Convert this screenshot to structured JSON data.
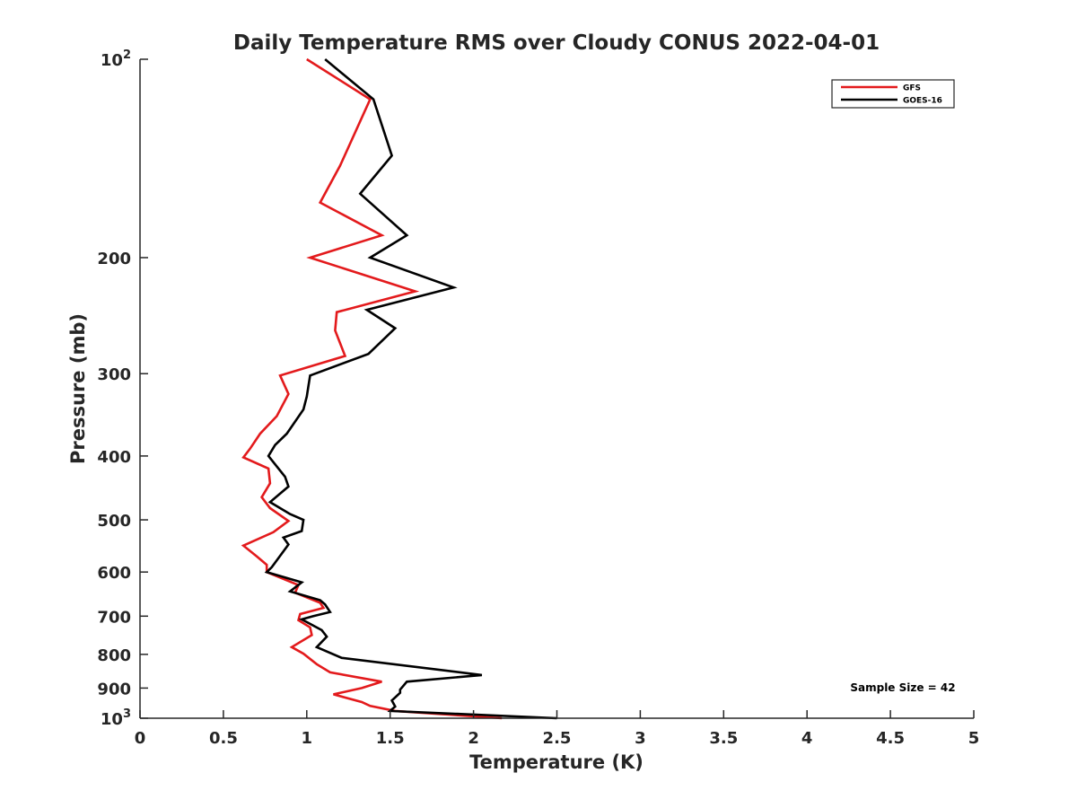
{
  "chart_data": {
    "type": "line",
    "title": "Daily Temperature RMS over Cloudy CONUS 2022-04-01",
    "xlabel": "Temperature (K)",
    "ylabel": "Pressure (mb)",
    "xlim": [
      0,
      5
    ],
    "ylim": [
      100,
      1000
    ],
    "y_scale": "log",
    "y_reversed": true,
    "grid": false,
    "legend_position": "top-right",
    "x_ticks": [
      "0",
      "0.5",
      "1",
      "1.5",
      "2",
      "2.5",
      "3",
      "3.5",
      "4",
      "4.5",
      "5"
    ],
    "y_ticks": [
      {
        "value": 100,
        "base": "10",
        "exp": "2"
      },
      {
        "value": 200,
        "label": "200"
      },
      {
        "value": 300,
        "label": "300"
      },
      {
        "value": 400,
        "label": "400"
      },
      {
        "value": 500,
        "label": "500"
      },
      {
        "value": 600,
        "label": "600"
      },
      {
        "value": 700,
        "label": "700"
      },
      {
        "value": 800,
        "label": "800"
      },
      {
        "value": 900,
        "label": "900"
      },
      {
        "value": 1000,
        "base": "10",
        "exp": "3"
      }
    ],
    "annotation": "Sample Size = 42",
    "series": [
      {
        "name": "GFS",
        "color": "#e31a1c",
        "points": [
          [
            1.0,
            100
          ],
          [
            1.38,
            115
          ],
          [
            1.2,
            145
          ],
          [
            1.08,
            165
          ],
          [
            1.45,
            185
          ],
          [
            1.02,
            200
          ],
          [
            1.65,
            225
          ],
          [
            1.18,
            242
          ],
          [
            1.17,
            258
          ],
          [
            1.23,
            282
          ],
          [
            0.84,
            302
          ],
          [
            0.89,
            322
          ],
          [
            0.82,
            348
          ],
          [
            0.72,
            370
          ],
          [
            0.66,
            390
          ],
          [
            0.62,
            402
          ],
          [
            0.77,
            418
          ],
          [
            0.78,
            440
          ],
          [
            0.73,
            462
          ],
          [
            0.78,
            480
          ],
          [
            0.89,
            502
          ],
          [
            0.8,
            522
          ],
          [
            0.62,
            547
          ],
          [
            0.7,
            568
          ],
          [
            0.76,
            585
          ],
          [
            0.76,
            600
          ],
          [
            0.95,
            628
          ],
          [
            0.93,
            645
          ],
          [
            1.08,
            668
          ],
          [
            1.1,
            680
          ],
          [
            0.96,
            695
          ],
          [
            0.95,
            710
          ],
          [
            1.02,
            728
          ],
          [
            1.03,
            748
          ],
          [
            0.91,
            780
          ],
          [
            0.98,
            798
          ],
          [
            1.06,
            828
          ],
          [
            1.14,
            852
          ],
          [
            1.45,
            880
          ],
          [
            1.33,
            900
          ],
          [
            1.16,
            920
          ],
          [
            1.33,
            945
          ],
          [
            1.38,
            958
          ],
          [
            1.53,
            975
          ],
          [
            2.17,
            1000
          ]
        ]
      },
      {
        "name": "GOES-16",
        "color": "#000000",
        "points": [
          [
            1.11,
            100
          ],
          [
            1.4,
            115
          ],
          [
            1.51,
            140
          ],
          [
            1.32,
            160
          ],
          [
            1.6,
            185
          ],
          [
            1.38,
            200
          ],
          [
            1.88,
            222
          ],
          [
            1.36,
            240
          ],
          [
            1.53,
            256
          ],
          [
            1.37,
            280
          ],
          [
            1.02,
            302
          ],
          [
            1.0,
            325
          ],
          [
            0.98,
            340
          ],
          [
            0.88,
            370
          ],
          [
            0.81,
            385
          ],
          [
            0.77,
            400
          ],
          [
            0.87,
            430
          ],
          [
            0.89,
            445
          ],
          [
            0.78,
            470
          ],
          [
            0.9,
            490
          ],
          [
            0.98,
            500
          ],
          [
            0.97,
            520
          ],
          [
            0.86,
            532
          ],
          [
            0.89,
            545
          ],
          [
            0.79,
            590
          ],
          [
            0.76,
            600
          ],
          [
            0.97,
            622
          ],
          [
            0.9,
            642
          ],
          [
            1.08,
            662
          ],
          [
            1.11,
            672
          ],
          [
            1.14,
            690
          ],
          [
            1.04,
            700
          ],
          [
            0.97,
            708
          ],
          [
            1.09,
            735
          ],
          [
            1.12,
            752
          ],
          [
            1.06,
            780
          ],
          [
            1.21,
            810
          ],
          [
            2.05,
            860
          ],
          [
            1.6,
            880
          ],
          [
            1.56,
            905
          ],
          [
            1.56,
            915
          ],
          [
            1.51,
            940
          ],
          [
            1.53,
            960
          ],
          [
            1.5,
            975
          ],
          [
            2.5,
            1000
          ]
        ]
      }
    ]
  }
}
